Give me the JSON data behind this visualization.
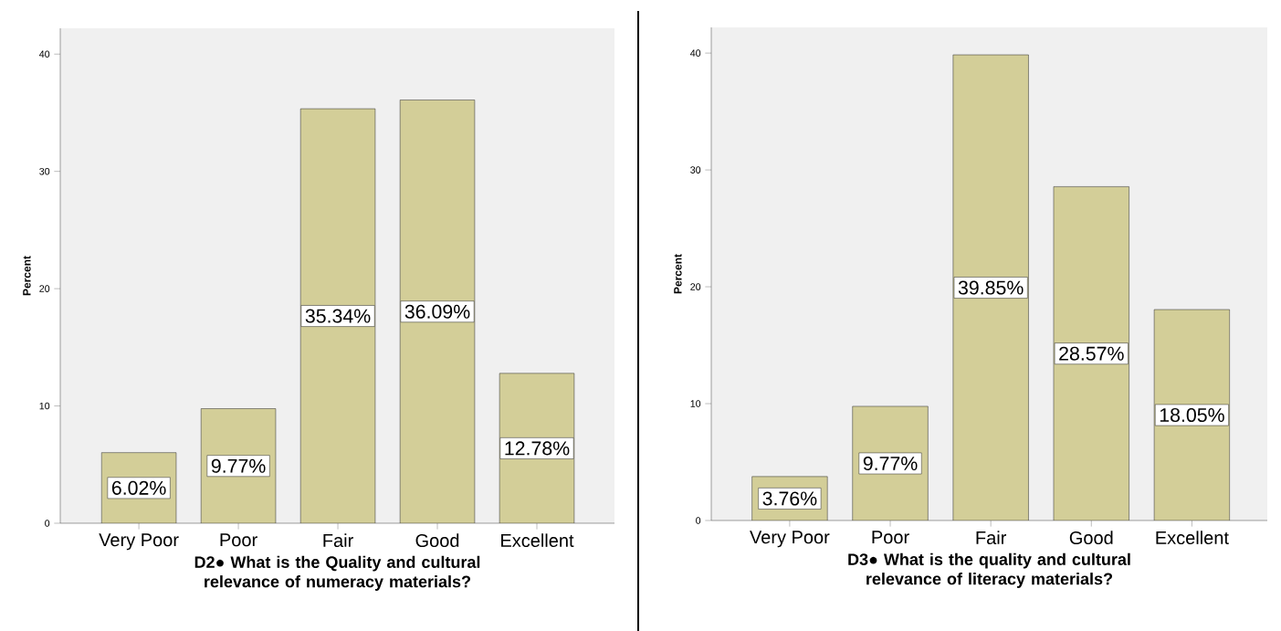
{
  "chart_data": [
    {
      "type": "bar",
      "xlabel": "D2●    What is the Quality and cultural relevance of numeracy materials?",
      "ylabel": "Percent",
      "categories": [
        "Very Poor",
        "Poor",
        "Fair",
        "Good",
        "Excellent"
      ],
      "values": [
        6.02,
        9.77,
        35.34,
        36.09,
        12.78
      ],
      "value_labels": [
        "6.02%",
        "9.77%",
        "35.34%",
        "36.09%",
        "12.78%"
      ],
      "color": "#d3ce98",
      "ylim": [
        0,
        42.2
      ],
      "yticks": [
        0,
        10,
        20,
        30,
        40
      ],
      "grid": false
    },
    {
      "type": "bar",
      "xlabel": "D3●    What is the quality and cultural relevance of literacy materials?",
      "ylabel": "Percent",
      "categories": [
        "Very Poor",
        "Poor",
        "Fair",
        "Good",
        "Excellent"
      ],
      "values": [
        3.76,
        9.77,
        39.85,
        28.57,
        18.05
      ],
      "value_labels": [
        "3.76%",
        "9.77%",
        "39.85%",
        "28.57%",
        "18.05%"
      ],
      "color": "#d3ce98",
      "ylim": [
        0,
        42.2
      ],
      "yticks": [
        0,
        10,
        20,
        30,
        40
      ],
      "grid": false
    }
  ]
}
